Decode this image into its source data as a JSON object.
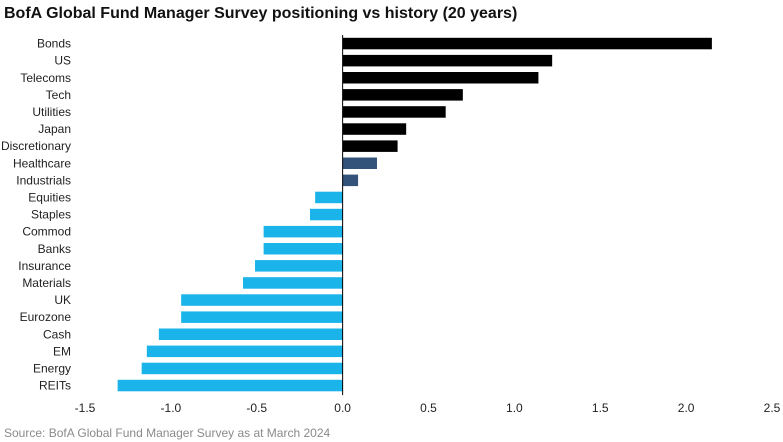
{
  "chart_data": {
    "type": "bar",
    "orientation": "horizontal",
    "title": "BofA Global Fund Manager Survey positioning vs history (20 years)",
    "categories": [
      "Bonds",
      "US",
      "Telecoms",
      "Tech",
      "Utilities",
      "Japan",
      "Discretionary",
      "Healthcare",
      "Industrials",
      "Equities",
      "Staples",
      "Commod",
      "Banks",
      "Insurance",
      "Materials",
      "UK",
      "Eurozone",
      "Cash",
      "EM",
      "Energy",
      "REITs"
    ],
    "values": [
      2.15,
      1.22,
      1.14,
      0.7,
      0.6,
      0.37,
      0.32,
      0.2,
      0.09,
      -0.16,
      -0.19,
      -0.46,
      -0.46,
      -0.51,
      -0.58,
      -0.94,
      -0.94,
      -1.07,
      -1.14,
      -1.17,
      -1.31
    ],
    "bar_colors": [
      "#000000",
      "#000000",
      "#000000",
      "#000000",
      "#000000",
      "#000000",
      "#000000",
      "#34537a",
      "#34537a",
      "#1ab4ea",
      "#1ab4ea",
      "#1ab4ea",
      "#1ab4ea",
      "#1ab4ea",
      "#1ab4ea",
      "#1ab4ea",
      "#1ab4ea",
      "#1ab4ea",
      "#1ab4ea",
      "#1ab4ea",
      "#1ab4ea"
    ],
    "xlim": [
      -1.5,
      2.5
    ],
    "xticks": [
      -1.5,
      -1.0,
      -0.5,
      0.0,
      0.5,
      1.0,
      1.5,
      2.0,
      2.5
    ],
    "xtick_labels": [
      "-1.5",
      "-1.0",
      "-0.5",
      "0.0",
      "0.5",
      "1.0",
      "1.5",
      "2.0",
      "2.5"
    ],
    "xlabel": "",
    "ylabel": "",
    "grid": false,
    "legend": "none"
  },
  "source": "Source: BofA Global Fund Manager Survey as at March 2024"
}
